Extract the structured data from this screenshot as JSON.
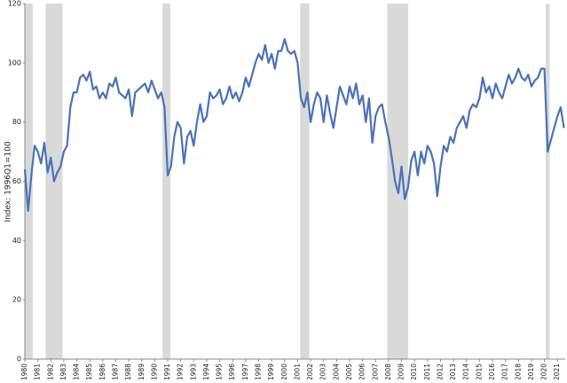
{
  "chart_data": {
    "type": "line",
    "y_label": "Index: 1996Q1=100",
    "xlim": [
      1980,
      2021.6
    ],
    "ylim": [
      0,
      120
    ],
    "yticks": [
      0,
      20,
      40,
      60,
      80,
      100,
      120
    ],
    "xticks": [
      1980,
      1981,
      1982,
      1983,
      1984,
      1985,
      1986,
      1987,
      1988,
      1989,
      1990,
      1991,
      1992,
      1993,
      1994,
      1995,
      1996,
      1997,
      1998,
      1999,
      2000,
      2001,
      2002,
      2003,
      2004,
      2005,
      2006,
      2007,
      2008,
      2009,
      2010,
      2011,
      2012,
      2013,
      2014,
      2015,
      2016,
      2017,
      2018,
      2019,
      2020,
      2021
    ],
    "recessions": [
      [
        1980.0,
        1980.6
      ],
      [
        1981.6,
        1982.9
      ],
      [
        1990.6,
        1991.2
      ],
      [
        2001.2,
        2001.9
      ],
      [
        2007.9,
        2009.5
      ],
      [
        2020.1,
        2020.4
      ]
    ],
    "recession_color": "#d9d9d9",
    "x": [
      1980.0,
      1980.25,
      1980.5,
      1980.75,
      1981.0,
      1981.25,
      1981.5,
      1981.75,
      1982.0,
      1982.25,
      1982.5,
      1982.75,
      1983.0,
      1983.25,
      1983.5,
      1983.75,
      1984.0,
      1984.25,
      1984.5,
      1984.75,
      1985.0,
      1985.25,
      1985.5,
      1985.75,
      1986.0,
      1986.25,
      1986.5,
      1986.75,
      1987.0,
      1987.25,
      1987.5,
      1987.75,
      1988.0,
      1988.25,
      1988.5,
      1988.75,
      1989.0,
      1989.25,
      1989.5,
      1989.75,
      1990.0,
      1990.25,
      1990.5,
      1990.75,
      1991.0,
      1991.25,
      1991.5,
      1991.75,
      1992.0,
      1992.25,
      1992.5,
      1992.75,
      1993.0,
      1993.25,
      1993.5,
      1993.75,
      1994.0,
      1994.25,
      1994.5,
      1994.75,
      1995.0,
      1995.25,
      1995.5,
      1995.75,
      1996.0,
      1996.25,
      1996.5,
      1996.75,
      1997.0,
      1997.25,
      1997.5,
      1997.75,
      1998.0,
      1998.25,
      1998.5,
      1998.75,
      1999.0,
      1999.25,
      1999.5,
      1999.75,
      2000.0,
      2000.25,
      2000.5,
      2000.75,
      2001.0,
      2001.25,
      2001.5,
      2001.75,
      2002.0,
      2002.25,
      2002.5,
      2002.75,
      2003.0,
      2003.25,
      2003.5,
      2003.75,
      2004.0,
      2004.25,
      2004.5,
      2004.75,
      2005.0,
      2005.25,
      2005.5,
      2005.75,
      2006.0,
      2006.25,
      2006.5,
      2006.75,
      2007.0,
      2007.25,
      2007.5,
      2007.75,
      2008.0,
      2008.25,
      2008.5,
      2008.75,
      2009.0,
      2009.25,
      2009.5,
      2009.75,
      2010.0,
      2010.25,
      2010.5,
      2010.75,
      2011.0,
      2011.25,
      2011.5,
      2011.75,
      2012.0,
      2012.25,
      2012.5,
      2012.75,
      2013.0,
      2013.25,
      2013.5,
      2013.75,
      2014.0,
      2014.25,
      2014.5,
      2014.75,
      2015.0,
      2015.25,
      2015.5,
      2015.75,
      2016.0,
      2016.25,
      2016.5,
      2016.75,
      2017.0,
      2017.25,
      2017.5,
      2017.75,
      2018.0,
      2018.25,
      2018.5,
      2018.75,
      2019.0,
      2019.25,
      2019.5,
      2019.75,
      2020.0,
      2020.25,
      2020.5,
      2020.75,
      2021.0,
      2021.25,
      2021.5
    ],
    "series": [
      {
        "color": "#4a72b8",
        "values": [
          64,
          50,
          62,
          72,
          70,
          66,
          73,
          63,
          68,
          60,
          63,
          65,
          70,
          72,
          85,
          90,
          90,
          95,
          96,
          94,
          97,
          91,
          92,
          88,
          90,
          88,
          93,
          92,
          95,
          90,
          89,
          88,
          91,
          82,
          90,
          91,
          92,
          93,
          90,
          94,
          91,
          88,
          90,
          85,
          62,
          65,
          75,
          80,
          78,
          66,
          75,
          77,
          72,
          80,
          86,
          80,
          82,
          90,
          88,
          89,
          91,
          86,
          88,
          92,
          88,
          90,
          87,
          90,
          95,
          92,
          96,
          100,
          103,
          101,
          106,
          100,
          103,
          98,
          104,
          104,
          108,
          104,
          103,
          104,
          100,
          88,
          85,
          90,
          80,
          86,
          90,
          88,
          80,
          89,
          83,
          78,
          85,
          92,
          89,
          86,
          92,
          88,
          93,
          86,
          89,
          80,
          88,
          73,
          82,
          85,
          86,
          80,
          75,
          68,
          60,
          56,
          65,
          54,
          58,
          67,
          70,
          62,
          70,
          66,
          72,
          70,
          66,
          55,
          65,
          72,
          70,
          75,
          73,
          78,
          80,
          82,
          78,
          84,
          86,
          85,
          88,
          95,
          90,
          92,
          88,
          93,
          90,
          88,
          92,
          96,
          93,
          95,
          98,
          95,
          94,
          96,
          92,
          94,
          95,
          98,
          98,
          70,
          74,
          78,
          82,
          85,
          78
        ]
      }
    ]
  }
}
